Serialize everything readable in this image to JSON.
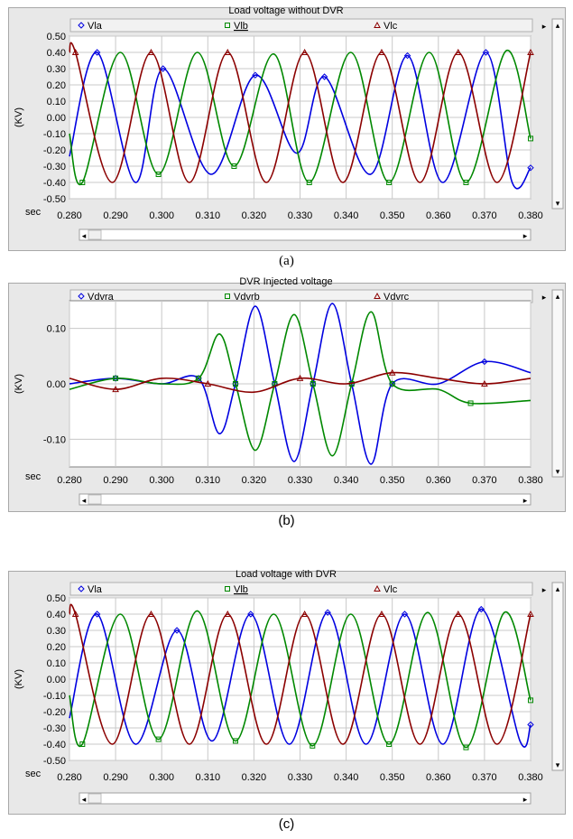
{
  "chart_data": [
    {
      "type": "line",
      "title": "Load voltage without DVR",
      "ylabel": "(KV)",
      "xlabel": "sec",
      "xlim": [
        0.28,
        0.38
      ],
      "ylim": [
        -0.5,
        0.5
      ],
      "xticks": [
        "0.280",
        "0.290",
        "0.300",
        "0.310",
        "0.320",
        "0.330",
        "0.340",
        "0.350",
        "0.360",
        "0.370",
        "0.380"
      ],
      "yticks": [
        "0.50",
        "0.40",
        "0.30",
        "0.20",
        "0.10",
        "0.00",
        "-0.10",
        "-0.20",
        "-0.30",
        "-0.40",
        "-0.50"
      ],
      "grid": true,
      "legend": "top",
      "series": [
        {
          "name": "Vla",
          "color": "#0000e0",
          "marker": "diamond",
          "x": [
            0.28,
            0.286,
            0.2943,
            0.3003,
            0.3107,
            0.3203,
            0.3293,
            0.3353,
            0.3453,
            0.3533,
            0.361,
            0.3703,
            0.376,
            0.38
          ],
          "y": [
            -0.24,
            0.4,
            -0.4,
            0.3,
            -0.35,
            0.26,
            -0.22,
            0.25,
            -0.35,
            0.38,
            -0.4,
            0.4,
            -0.4,
            -0.31
          ]
        },
        {
          "name": "Vlb",
          "color": "#008800",
          "marker": "square",
          "x": [
            0.28,
            0.2828,
            0.291,
            0.2993,
            0.3077,
            0.3157,
            0.3243,
            0.332,
            0.341,
            0.3493,
            0.358,
            0.366,
            0.3747,
            0.38
          ],
          "y": [
            -0.1,
            -0.4,
            0.4,
            -0.35,
            0.4,
            -0.3,
            0.39,
            -0.4,
            0.4,
            -0.4,
            0.4,
            -0.4,
            0.41,
            -0.13
          ]
        },
        {
          "name": "Vlc",
          "color": "#8b0000",
          "marker": "triangle",
          "x": [
            0.28,
            0.2813,
            0.2893,
            0.2977,
            0.306,
            0.3143,
            0.3227,
            0.331,
            0.3393,
            0.3477,
            0.356,
            0.3643,
            0.3727,
            0.38
          ],
          "y": [
            0.4,
            0.4,
            -0.4,
            0.4,
            -0.4,
            0.4,
            -0.4,
            0.4,
            -0.4,
            0.4,
            -0.4,
            0.4,
            -0.4,
            0.4
          ]
        }
      ]
    },
    {
      "type": "line",
      "title": "DVR Injected voltage",
      "ylabel": "(KV)",
      "xlabel": "sec",
      "xlim": [
        0.28,
        0.38
      ],
      "ylim": [
        -0.15,
        0.15
      ],
      "xticks": [
        "0.280",
        "0.290",
        "0.300",
        "0.310",
        "0.320",
        "0.330",
        "0.340",
        "0.350",
        "0.360",
        "0.370",
        "0.380"
      ],
      "yticks": [
        "0.10",
        "0.00",
        "-0.10"
      ],
      "grid": true,
      "legend": "top",
      "series": [
        {
          "name": "Vdvra",
          "color": "#0000e0",
          "marker": "diamond",
          "x": [
            0.28,
            0.29,
            0.3,
            0.308,
            0.3125,
            0.316,
            0.3203,
            0.3245,
            0.3287,
            0.3328,
            0.337,
            0.3412,
            0.3454,
            0.35,
            0.36,
            0.37,
            0.38
          ],
          "y": [
            0.0,
            0.01,
            0.0,
            0.01,
            -0.09,
            0.0,
            0.14,
            0.0,
            -0.14,
            0.0,
            0.145,
            0.0,
            -0.145,
            0.0,
            0.0,
            0.04,
            0.02
          ]
        },
        {
          "name": "Vdvrb",
          "color": "#008800",
          "marker": "square",
          "x": [
            0.28,
            0.29,
            0.3,
            0.308,
            0.3125,
            0.316,
            0.3203,
            0.3245,
            0.3287,
            0.3328,
            0.337,
            0.3412,
            0.3454,
            0.35,
            0.36,
            0.367,
            0.38
          ],
          "y": [
            -0.01,
            0.01,
            0.0,
            0.01,
            0.09,
            0.0,
            -0.12,
            0.0,
            0.125,
            0.0,
            -0.13,
            0.0,
            0.13,
            0.0,
            -0.01,
            -0.035,
            -0.03
          ]
        },
        {
          "name": "Vdvrc",
          "color": "#8b0000",
          "marker": "triangle",
          "x": [
            0.28,
            0.29,
            0.3,
            0.31,
            0.32,
            0.33,
            0.34,
            0.35,
            0.36,
            0.37,
            0.38
          ],
          "y": [
            0.01,
            -0.01,
            0.01,
            0.0,
            -0.015,
            0.01,
            0.0,
            0.02,
            0.01,
            0.0,
            0.01
          ]
        }
      ]
    },
    {
      "type": "line",
      "title": "Load voltage with DVR",
      "ylabel": "(KV)",
      "xlabel": "sec",
      "xlim": [
        0.28,
        0.38
      ],
      "ylim": [
        -0.5,
        0.5
      ],
      "xticks": [
        "0.280",
        "0.290",
        "0.300",
        "0.310",
        "0.320",
        "0.330",
        "0.340",
        "0.350",
        "0.360",
        "0.370",
        "0.380"
      ],
      "yticks": [
        "0.50",
        "0.40",
        "0.30",
        "0.20",
        "0.10",
        "0.00",
        "-0.10",
        "-0.20",
        "-0.30",
        "-0.40",
        "-0.50"
      ],
      "grid": true,
      "legend": "top",
      "series": [
        {
          "name": "Vla",
          "color": "#0000e0",
          "marker": "diamond",
          "x": [
            0.28,
            0.286,
            0.2943,
            0.3033,
            0.311,
            0.3193,
            0.3277,
            0.336,
            0.3443,
            0.3527,
            0.361,
            0.3693,
            0.3777,
            0.38
          ],
          "y": [
            -0.24,
            0.4,
            -0.4,
            0.3,
            -0.38,
            0.4,
            -0.4,
            0.41,
            -0.4,
            0.4,
            -0.4,
            0.43,
            -0.38,
            -0.28
          ]
        },
        {
          "name": "Vlb",
          "color": "#008800",
          "marker": "square",
          "x": [
            0.28,
            0.2828,
            0.291,
            0.2993,
            0.3077,
            0.316,
            0.3243,
            0.3327,
            0.341,
            0.3493,
            0.3577,
            0.366,
            0.3743,
            0.38
          ],
          "y": [
            -0.1,
            -0.4,
            0.4,
            -0.37,
            0.42,
            -0.38,
            0.4,
            -0.41,
            0.4,
            -0.4,
            0.41,
            -0.42,
            0.41,
            -0.13
          ]
        },
        {
          "name": "Vlc",
          "color": "#8b0000",
          "marker": "triangle",
          "x": [
            0.28,
            0.2813,
            0.2893,
            0.2977,
            0.306,
            0.3143,
            0.3227,
            0.331,
            0.3393,
            0.3477,
            0.356,
            0.3643,
            0.3727,
            0.38
          ],
          "y": [
            0.4,
            0.4,
            -0.4,
            0.4,
            -0.4,
            0.4,
            -0.4,
            0.4,
            -0.4,
            0.4,
            -0.4,
            0.4,
            -0.4,
            0.4
          ]
        }
      ]
    }
  ],
  "captions": [
    "(a)",
    "(b)",
    "(c)"
  ]
}
